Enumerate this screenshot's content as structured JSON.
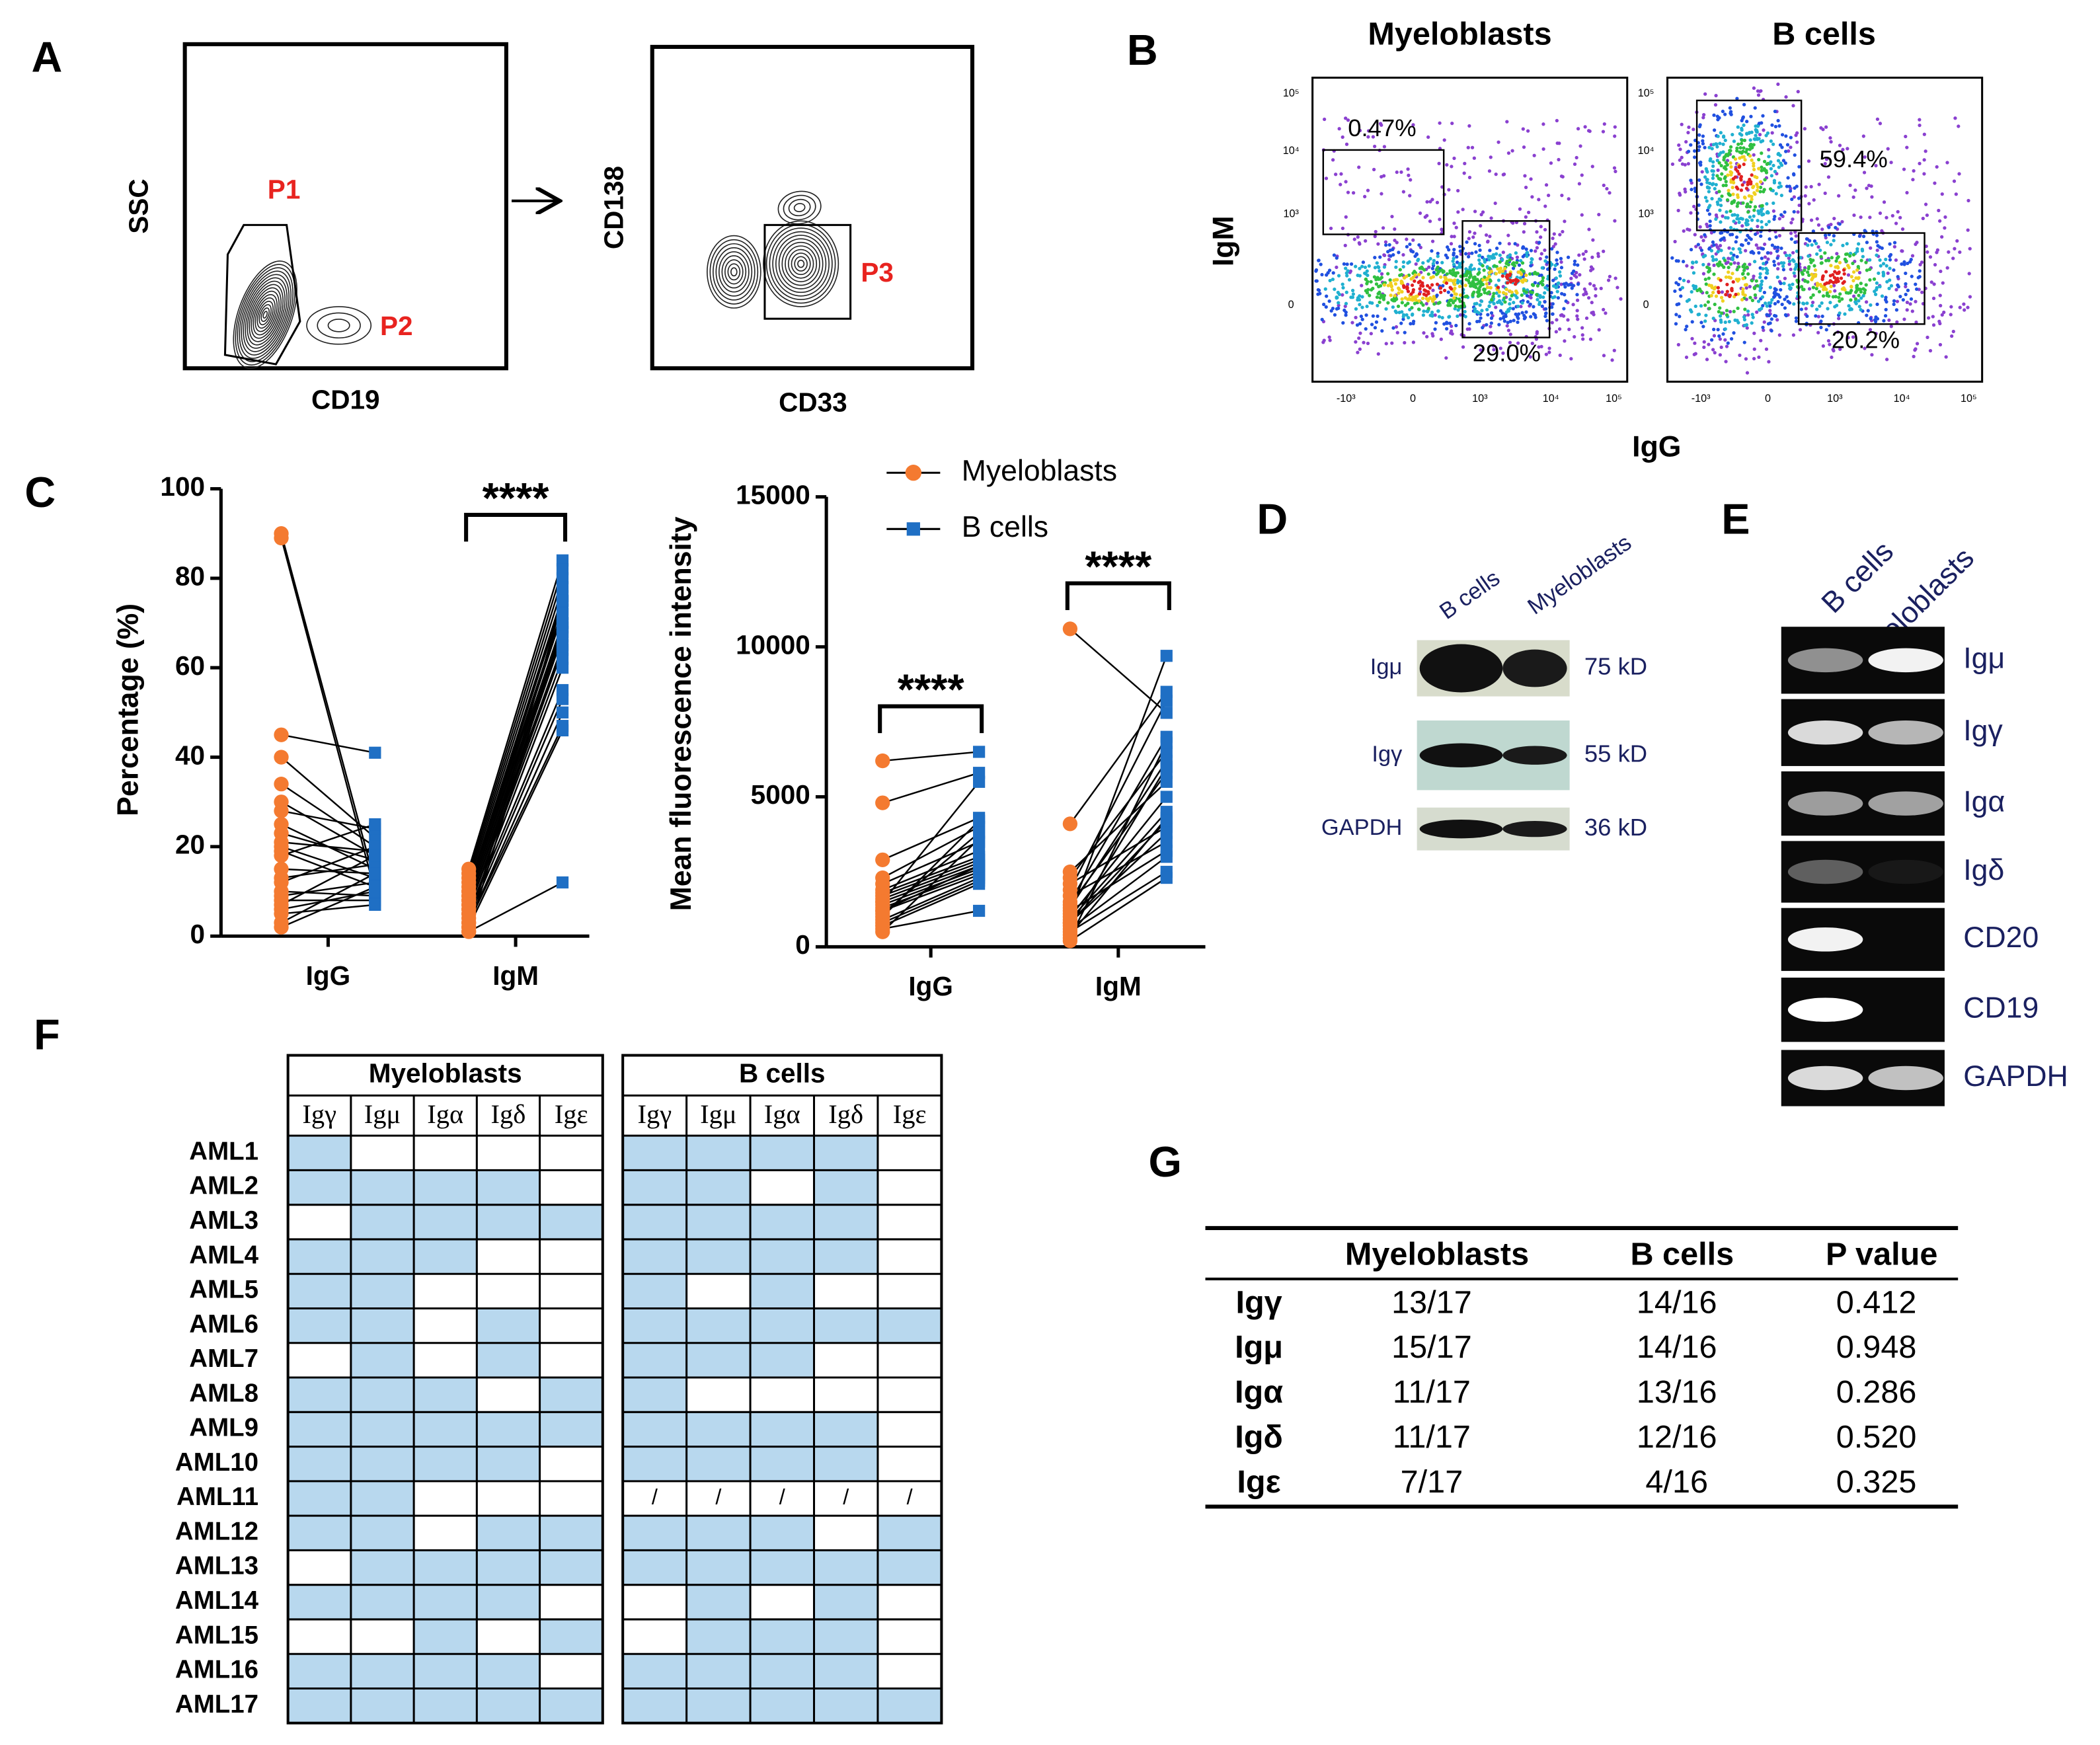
{
  "panel_labels": [
    "A",
    "B",
    "C",
    "D",
    "E",
    "F",
    "G"
  ],
  "panel_a": {
    "plots": [
      {
        "xlabel": "CD19",
        "ylabel": "SSC",
        "gates": [
          "P1",
          "P2"
        ]
      },
      {
        "xlabel": "CD33",
        "ylabel": "CD138",
        "gates": [
          "P3"
        ]
      }
    ]
  },
  "panel_b": {
    "xlabel": "IgG",
    "ylabel": "IgM",
    "xticks": [
      "-10³",
      "0",
      "10³",
      "10⁴",
      "10⁵"
    ],
    "yticks": [
      "0",
      "10³",
      "10⁴",
      "10⁵"
    ],
    "plots": [
      {
        "title": "Myeloblasts",
        "gates": [
          "0.47%",
          "29.0%"
        ]
      },
      {
        "title": "B cells",
        "gates": [
          "59.4%",
          "20.2%"
        ]
      }
    ]
  },
  "chart_data": [
    {
      "type": "paired",
      "ylabel": "Percentage (%)",
      "categories": [
        "IgG",
        "IgM"
      ],
      "ylim": [
        0,
        100
      ],
      "yticks": [
        0,
        20,
        40,
        60,
        80,
        100
      ],
      "legend": false,
      "series": [
        {
          "color": "#f47a30",
          "marker": "circle",
          "values": [
            [
              90,
              89,
              45,
              40,
              34,
              30,
              28,
              25,
              23,
              21,
              20,
              19,
              18,
              15,
              13,
              12,
              10,
              9,
              8,
              7,
              6,
              5,
              3,
              2
            ],
            [
              15,
              14,
              13,
              12,
              11,
              10,
              10,
              9,
              9,
              8,
              8,
              7,
              7,
              6,
              6,
              5,
              5,
              4,
              3,
              3,
              2,
              2,
              1,
              1
            ]
          ]
        },
        {
          "color": "#1f6fc4",
          "marker": "square",
          "values": [
            [
              12,
              10,
              41,
              22,
              20,
              18,
              24,
              15,
              17,
              19,
              13,
              11,
              25,
              14,
              16,
              20,
              9,
              12,
              8,
              18,
              10,
              7,
              14,
              11
            ],
            [
              84,
              82,
              80,
              78,
              76,
              75,
              73,
              72,
              70,
              69,
              68,
              67,
              65,
              64,
              62,
              60,
              55,
              53,
              50,
              47,
              46,
              75,
              12,
              70
            ]
          ]
        }
      ],
      "annotations": [
        {
          "text": "****",
          "category": 1
        }
      ]
    },
    {
      "type": "paired",
      "ylabel": "Mean fluorescence intensity",
      "categories": [
        "IgG",
        "IgM"
      ],
      "ylim": [
        0,
        15000
      ],
      "yticks": [
        0,
        5000,
        10000,
        15000
      ],
      "legend": true,
      "series": [
        {
          "name": "Myeloblasts",
          "color": "#f47a30",
          "marker": "circle",
          "values": [
            [
              6200,
              4800,
              2900,
              2300,
              2100,
              1900,
              1800,
              1700,
              1600,
              1500,
              1400,
              1300,
              1200,
              1100,
              1000,
              900,
              800,
              700,
              600,
              500,
              1500,
              1200
            ],
            [
              10600,
              4100,
              2500,
              2300,
              2100,
              1900,
              1700,
              1500,
              1300,
              1100,
              1000,
              900,
              800,
              700,
              600,
              500,
              400,
              300,
              200,
              1400,
              1200,
              800
            ]
          ]
        },
        {
          "name": "B cells",
          "color": "#1f6fc4",
          "marker": "square",
          "values": [
            [
              6500,
              5800,
              4300,
              4000,
              3500,
              3200,
              3000,
              2900,
              2800,
              2700,
              2600,
              2500,
              2400,
              3800,
              4200,
              2300,
              2200,
              2100,
              1200,
              3600,
              5500,
              2700
            ],
            [
              7800,
              8500,
              5500,
              6500,
              4000,
              8200,
              3500,
              7000,
              6200,
              9700,
              5000,
              4500,
              3800,
              6000,
              3000,
              2500,
              4300,
              6800,
              2300,
              5800,
              3200,
              4200
            ]
          ]
        }
      ],
      "annotations": [
        {
          "text": "****",
          "category": 0
        },
        {
          "text": "****",
          "category": 1
        }
      ]
    }
  ],
  "panel_d": {
    "lanes": [
      "B cells",
      "Myeloblasts"
    ],
    "rows": [
      {
        "label": "Igμ",
        "size": "75 kD"
      },
      {
        "label": "Igγ",
        "size": "55 kD"
      },
      {
        "label": "GAPDH",
        "size": "36 kD"
      }
    ]
  },
  "panel_e": {
    "lanes": [
      "B cells",
      "Myeloblasts"
    ],
    "rows": [
      "Igμ",
      "Igγ",
      "Igα",
      "Igδ",
      "CD20",
      "CD19",
      "GAPDH"
    ]
  },
  "panel_f": {
    "row_labels": [
      "AML1",
      "AML2",
      "AML3",
      "AML4",
      "AML5",
      "AML6",
      "AML7",
      "AML8",
      "AML9",
      "AML10",
      "AML11",
      "AML12",
      "AML13",
      "AML14",
      "AML15",
      "AML16",
      "AML17"
    ],
    "groups": [
      {
        "name": "Myeloblasts",
        "columns": [
          "Igγ",
          "Igμ",
          "Igα",
          "Igδ",
          "Igε"
        ],
        "rows": [
          [
            true,
            false,
            false,
            false,
            false
          ],
          [
            true,
            true,
            true,
            true,
            false
          ],
          [
            false,
            true,
            true,
            true,
            true
          ],
          [
            true,
            true,
            true,
            false,
            false
          ],
          [
            true,
            true,
            false,
            false,
            false
          ],
          [
            true,
            true,
            false,
            true,
            false
          ],
          [
            false,
            true,
            false,
            true,
            false
          ],
          [
            true,
            true,
            true,
            false,
            true
          ],
          [
            true,
            true,
            true,
            true,
            true
          ],
          [
            true,
            true,
            true,
            true,
            false
          ],
          [
            true,
            true,
            false,
            false,
            false
          ],
          [
            true,
            true,
            false,
            true,
            true
          ],
          [
            false,
            true,
            true,
            true,
            true
          ],
          [
            true,
            true,
            true,
            true,
            false
          ],
          [
            false,
            false,
            true,
            false,
            true
          ],
          [
            true,
            true,
            true,
            true,
            false
          ],
          [
            true,
            true,
            true,
            true,
            true
          ]
        ]
      },
      {
        "name": "B cells",
        "columns": [
          "Igγ",
          "Igμ",
          "Igα",
          "Igδ",
          "Igε"
        ],
        "rows": [
          [
            true,
            true,
            true,
            true,
            false
          ],
          [
            true,
            true,
            false,
            true,
            false
          ],
          [
            true,
            true,
            true,
            true,
            false
          ],
          [
            true,
            true,
            true,
            true,
            false
          ],
          [
            true,
            false,
            true,
            false,
            false
          ],
          [
            true,
            true,
            true,
            true,
            true
          ],
          [
            true,
            true,
            true,
            false,
            false
          ],
          [
            true,
            false,
            false,
            false,
            false
          ],
          [
            true,
            true,
            true,
            true,
            false
          ],
          [
            true,
            true,
            true,
            true,
            false
          ],
          [
            "/",
            "/",
            "/",
            "/",
            "/"
          ],
          [
            true,
            true,
            true,
            false,
            true
          ],
          [
            true,
            true,
            true,
            true,
            true
          ],
          [
            false,
            true,
            false,
            true,
            false
          ],
          [
            false,
            true,
            true,
            true,
            false
          ],
          [
            true,
            true,
            true,
            true,
            false
          ],
          [
            true,
            true,
            true,
            true,
            true
          ]
        ]
      }
    ]
  },
  "panel_g": {
    "columns": [
      "Myeloblasts",
      "B cells",
      "P value"
    ],
    "rows": [
      {
        "label": "Igγ",
        "cells": [
          "13/17",
          "14/16",
          "0.412"
        ]
      },
      {
        "label": "Igμ",
        "cells": [
          "15/17",
          "14/16",
          "0.948"
        ]
      },
      {
        "label": "Igα",
        "cells": [
          "11/17",
          "13/16",
          "0.286"
        ]
      },
      {
        "label": "Igδ",
        "cells": [
          "11/17",
          "12/16",
          "0.520"
        ]
      },
      {
        "label": "Igε",
        "cells": [
          "7/17",
          "4/16",
          "0.325"
        ]
      }
    ]
  }
}
